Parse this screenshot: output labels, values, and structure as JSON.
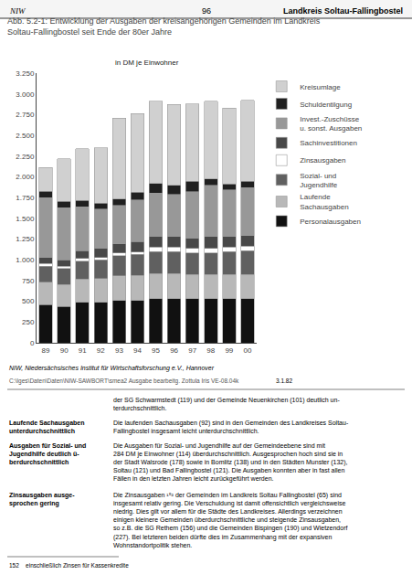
{
  "chart_data": {
    "type": "bar",
    "stacked": true,
    "title": "Abb. 5.2-1: Entwicklung der Ausgaben der kreisangehörigen Gemeinden im Landkreis\nSoltau-Fallingbostel seit Ende der 80er Jahre",
    "subtitle": "in DM je Einwohner",
    "categories": [
      "89",
      "90",
      "91",
      "92",
      "93",
      "94",
      "95",
      "96",
      "97",
      "98",
      "99",
      "00"
    ],
    "series": [
      {
        "name": "Personalausgaben",
        "color": "#111111",
        "values": [
          460,
          440,
          490,
          490,
          510,
          510,
          530,
          530,
          530,
          530,
          530,
          530
        ]
      },
      {
        "name": "Laufende\nSachausgaben",
        "color": "#b8b8b8",
        "values": [
          270,
          260,
          280,
          285,
          295,
          300,
          305,
          305,
          295,
          295,
          295,
          295
        ]
      },
      {
        "name": "Sozial- und\nJugendhilfe",
        "color": "#606060",
        "values": [
          195,
          195,
          215,
          225,
          245,
          255,
          265,
          265,
          255,
          255,
          275,
          285
        ]
      },
      {
        "name": "Zinsausgaben",
        "color": "#ffffff",
        "values": [
          30,
          30,
          30,
          30,
          30,
          30,
          55,
          55,
          55,
          55,
          55,
          55
        ]
      },
      {
        "name": "Sachinvestitionen",
        "color": "#484848",
        "values": [
          75,
          75,
          95,
          105,
          115,
          125,
          125,
          125,
          125,
          145,
          125,
          125
        ]
      },
      {
        "name": "Invest.-Zuschüsse\nu. sonst. Ausgaben",
        "color": "#989898",
        "values": [
          720,
          630,
          530,
          475,
          460,
          500,
          525,
          510,
          560,
          620,
          560,
          580
        ]
      },
      {
        "name": "Schuldentilgung",
        "color": "#202020",
        "values": [
          75,
          75,
          75,
          75,
          75,
          95,
          115,
          105,
          125,
          75,
          75,
          75
        ]
      },
      {
        "name": "Kreisumlage",
        "color": "#d0d0d0",
        "values": [
          285,
          510,
          625,
          665,
          980,
          945,
          990,
          975,
          935,
          935,
          915,
          980
        ]
      }
    ],
    "ylim": [
      0,
      3250
    ],
    "yticks": [
      0,
      250,
      500,
      750,
      {
        "value": 1000,
        "label": "1.000"
      },
      {
        "value": 1250,
        "label": "1.250"
      },
      {
        "value": 1500,
        "label": "1.500"
      },
      {
        "value": 1750,
        "label": "1.750"
      },
      {
        "value": 2000,
        "label": "2.000"
      },
      {
        "value": 2250,
        "label": "2.250"
      },
      {
        "value": 2500,
        "label": "2.500"
      },
      {
        "value": 2750,
        "label": "2.750"
      },
      {
        "value": 3000,
        "label": "3.000"
      },
      {
        "value": 3250,
        "label": "3.250"
      }
    ],
    "grid": false,
    "legend": "right",
    "annotations": [
      "NIW",
      "96",
      "Landkreis Soltau-Fallingbostel",
      "NIW, Niedersächsisches Institut für Wirtschaftsforschung e.V., Hannover",
      "3.1.82",
      "C:\\Iges\\Daten\\Daten\\NIW-SAWBORT\\smea2 Ausgabe bearbeitg. Zottula Iris VE-08.04k",
      "der SG Schwarmstedt (119) und der Gemeinde Neuenkirchen (101) deutlich un-\nterdurchschnittlich.",
      "Laufende Sachausgaben\nunterdurchschnittlich",
      "Die laufenden Sachausgaben (92) sind in den Gemeinden des Landkreises Soltau-\nFallingbostel insgesamt leicht unterdurchschnittlich.",
      "Ausgaben für Sozial- und\nJugendhilfe deutlich ü-\nberdurchschnittlich",
      "Die Ausgaben für Sozial- und Jugendhilfe auf der Gemeindeebene sind mit\n284 DM je Einwohner (114) überdurchschnittlich. Ausgesprochen hoch sind sie in\nder Stadt Walsrode (178) sowie in Bomlitz (138) und in den Städten Munster (132),\nSoltau (121) und Bad Fallingbostel (121). Die Ausgaben konnten aber in fast allen\nFällen in den letzten Jahren leicht zurückgeführt werden.",
      "Zinsausgaben ausge-\nsprochen gering",
      "Die Zinsausgaben ¹⁵² der Gemeinden im Landkreis Soltau Fallingbostel (65) sind\ninsgesamt relativ gering. Die Verschuldung ist damit offensichtlich vergleichsweise\nniedrig. Dies gilt vor allem für die Städte des Landkreises. Allerdings verzeichnen\neinigen kleinere Gemeinden überdurchschnittliche und steigende Zinsausgaben,\nso z.B. die SG Rethem (156) und die Gemeinden Bispingen (190) und Wietzendorf\n(227). Bei letzteren beiden dürfte dies im Zusammenhang mit der expansiven\nWohnstandortpolitik stehen.",
      "152    einschließlich Zinsen für Kassenkredite"
    ]
  }
}
